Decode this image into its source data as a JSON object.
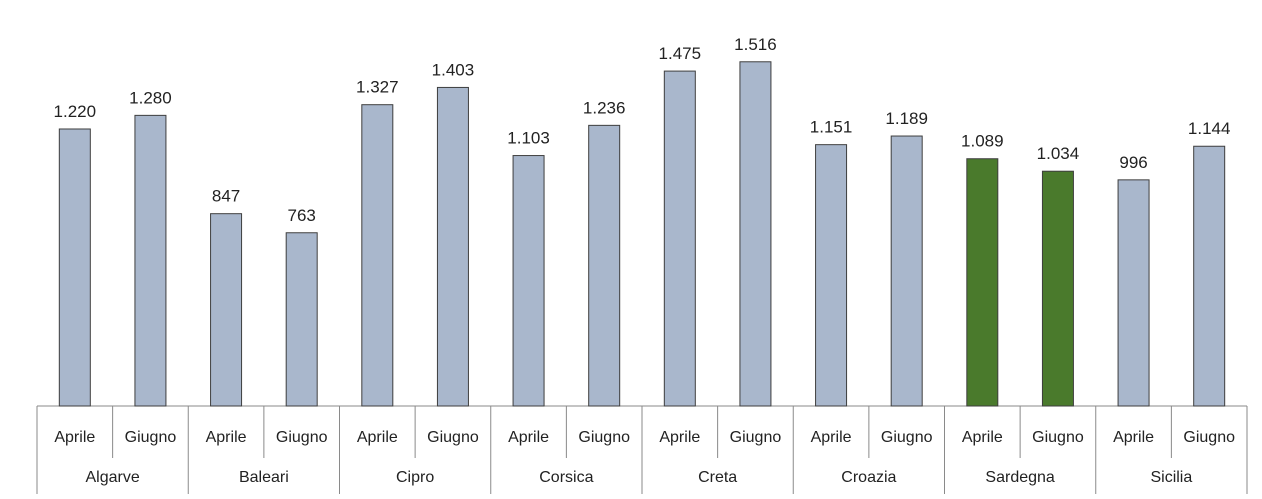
{
  "chart_data": {
    "type": "bar",
    "groups": [
      "Algarve",
      "Baleari",
      "Cipro",
      "Corsica",
      "Creta",
      "Croazia",
      "Sardegna",
      "Sicilia"
    ],
    "subcategories": [
      "Aprile",
      "Giugno"
    ],
    "values": [
      [
        1220,
        1280
      ],
      [
        847,
        763
      ],
      [
        1327,
        1403
      ],
      [
        1103,
        1236
      ],
      [
        1475,
        1516
      ],
      [
        1151,
        1189
      ],
      [
        1089,
        1034
      ],
      [
        996,
        1144
      ]
    ],
    "value_labels": [
      [
        "1.220",
        "1.280"
      ],
      [
        "847",
        "763"
      ],
      [
        "1.327",
        "1.403"
      ],
      [
        "1.103",
        "1.236"
      ],
      [
        "1.475",
        "1.516"
      ],
      [
        "1.151",
        "1.189"
      ],
      [
        "1.089",
        "1.034"
      ],
      [
        "996",
        "1.144"
      ]
    ],
    "highlight_group": "Sardegna",
    "ylim": [
      0,
      1700
    ],
    "grid": false,
    "title": "",
    "xlabel": "",
    "ylabel": "",
    "colors": {
      "bar": "#a9b7cc",
      "bar_stroke": "#3e3e3e",
      "highlight": "#4a7a2c",
      "axis": "#8a8a8a"
    }
  }
}
